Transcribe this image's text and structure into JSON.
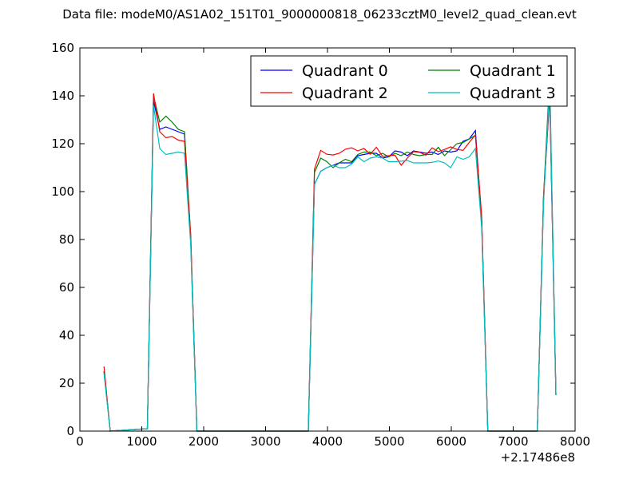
{
  "chart_data": {
    "type": "line",
    "title": "Data file: modeM0/AS1A02_151T01_9000000818_06233cztM0_level2_quad_clean.evt",
    "xlabel": "",
    "ylabel": "",
    "x_offset_label": "+2.17486e8",
    "xlim": [
      0,
      8000
    ],
    "ylim": [
      0,
      160
    ],
    "xticks": [
      0,
      1000,
      2000,
      3000,
      4000,
      5000,
      6000,
      7000,
      8000
    ],
    "yticks": [
      0,
      20,
      40,
      60,
      80,
      100,
      120,
      140,
      160
    ],
    "grid": false,
    "legend": {
      "placement": "top-right",
      "columns": 2
    },
    "x": [
      390,
      490,
      1090,
      1190,
      1290,
      1390,
      1490,
      1590,
      1690,
      1790,
      1890,
      3690,
      3790,
      3890,
      3990,
      4090,
      4190,
      4290,
      4390,
      4490,
      4590,
      4690,
      4790,
      4890,
      4990,
      5090,
      5190,
      5290,
      5390,
      5490,
      5590,
      5690,
      5790,
      5890,
      5990,
      6090,
      6190,
      6290,
      6390,
      6490,
      6590,
      7390,
      7490,
      7590,
      7690
    ],
    "series": [
      {
        "name": "Quadrant 0",
        "color": "#0000ff",
        "values": [
          25,
          0,
          1,
          138,
          126,
          127,
          126,
          125,
          124,
          80,
          0,
          0,
          103,
          108.5,
          110,
          111,
          112,
          112,
          112,
          115,
          115.5,
          116,
          116,
          114,
          114.5,
          117,
          116.5,
          115,
          117,
          116.5,
          116,
          116.5,
          115.5,
          117,
          116.5,
          117,
          121,
          122,
          125.5,
          88,
          0,
          0,
          97,
          140,
          15
        ]
      },
      {
        "name": "Quadrant 1",
        "color": "#007f00",
        "values": [
          25,
          0,
          1,
          140,
          129,
          131.5,
          129,
          126,
          125,
          82,
          0,
          0,
          108,
          114,
          112.5,
          110,
          112,
          113.5,
          112.5,
          115.5,
          116.5,
          116.5,
          115,
          116,
          114.5,
          116,
          115,
          116.5,
          115.5,
          115,
          115.5,
          115.5,
          118.5,
          115,
          117.5,
          120,
          120.5,
          122,
          123.5,
          88,
          0,
          0,
          98,
          148,
          15
        ]
      },
      {
        "name": "Quadrant 2",
        "color": "#ff0000",
        "values": [
          27,
          0,
          1,
          141,
          125,
          122.5,
          123,
          121.5,
          121,
          82,
          0,
          0,
          109.4,
          117.2,
          115.6,
          115.3,
          116,
          117.7,
          118.3,
          117,
          118,
          115.6,
          118.5,
          114.7,
          115,
          115.2,
          111,
          114,
          116.7,
          116.4,
          115.2,
          118.3,
          116.7,
          117.6,
          118.7,
          117.6,
          117.2,
          120.6,
          123.7,
          90,
          0,
          0,
          98,
          141,
          15
        ]
      },
      {
        "name": "Quadrant 3",
        "color": "#00bfbf",
        "values": [
          24,
          0,
          1,
          136,
          118,
          115.5,
          116,
          116.5,
          116,
          78,
          0,
          0,
          103,
          108.5,
          110,
          111,
          110,
          110,
          111.5,
          114.5,
          112.5,
          114,
          114.5,
          114,
          112.5,
          112.5,
          112.7,
          113,
          112,
          112,
          112,
          112.2,
          112.8,
          112,
          110,
          114.5,
          113.5,
          114.5,
          118,
          85,
          0,
          0,
          95,
          145,
          15
        ]
      }
    ]
  }
}
